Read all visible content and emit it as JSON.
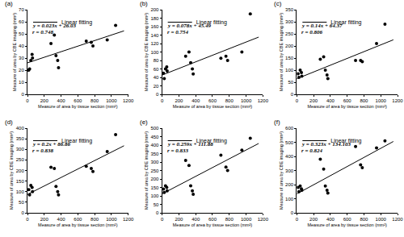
{
  "chart_data": [
    {
      "type": "scatter",
      "title": "(a)",
      "x_label": "Measure of area by tissue section (mm²)",
      "y_label": "Measure of area by CBE imaging (mm²)",
      "annotations": [
        "y = 0.023x + 26.03",
        "r = 0.748"
      ],
      "xlim": [
        0,
        1200
      ],
      "xticks": [
        0,
        200,
        400,
        600,
        800,
        1000,
        1200
      ],
      "ylim": [
        0,
        70
      ],
      "yticks": [
        0,
        10,
        20,
        30,
        40,
        50,
        60,
        70
      ],
      "grid": false,
      "legend": "top left",
      "series": [
        {
          "name": "Linear fitting",
          "type": "line",
          "color": "#000000",
          "line_style": "solid",
          "x": [
            0,
            1150
          ],
          "values": [
            26.03,
            52.48
          ]
        },
        {
          "type": "scatter",
          "color": "#000000",
          "marker": "circle",
          "x": [
            15,
            25,
            40,
            55,
            60,
            280,
            320,
            340,
            360,
            370,
            700,
            760,
            780,
            950,
            1050
          ],
          "values": [
            20,
            21,
            28,
            33,
            30,
            42,
            49,
            32,
            28,
            22,
            44,
            43,
            40,
            45,
            57
          ]
        }
      ]
    },
    {
      "type": "scatter",
      "title": "(b)",
      "x_label": "Measure of area by tissue section (mm²)",
      "y_label": "Measure of area by CBE imaging (mm²)",
      "annotations": [
        "y = 0.078x + 45.49",
        "r = 0.754"
      ],
      "xlim": [
        0,
        1200
      ],
      "xticks": [
        0,
        200,
        400,
        600,
        800,
        1000,
        1200
      ],
      "ylim": [
        0,
        200
      ],
      "yticks": [
        0,
        20,
        40,
        60,
        80,
        100,
        120,
        140,
        160,
        180,
        200
      ],
      "grid": false,
      "legend": "top left",
      "series": [
        {
          "name": "Linear fitting",
          "type": "line",
          "color": "#000000",
          "line_style": "solid",
          "x": [
            0,
            1150
          ],
          "values": [
            45.49,
            135.19
          ]
        },
        {
          "type": "scatter",
          "color": "#000000",
          "marker": "circle",
          "x": [
            15,
            25,
            40,
            55,
            60,
            280,
            320,
            340,
            360,
            370,
            700,
            760,
            780,
            950,
            1050
          ],
          "values": [
            50,
            37,
            60,
            65,
            55,
            90,
            100,
            75,
            60,
            48,
            85,
            90,
            80,
            100,
            190
          ]
        }
      ]
    },
    {
      "type": "scatter",
      "title": "(c)",
      "x_label": "Measure of area by tissue section (mm²)",
      "y_label": "Measure of area by CBE imaging (mm²)",
      "annotations": [
        "y = 0.14x + 64.37",
        "r = 0.806"
      ],
      "xlim": [
        0,
        1200
      ],
      "xticks": [
        0,
        200,
        400,
        600,
        800,
        1000,
        1200
      ],
      "ylim": [
        0,
        350
      ],
      "yticks": [
        0,
        50,
        100,
        150,
        200,
        250,
        300,
        350
      ],
      "grid": false,
      "legend": "top left",
      "series": [
        {
          "name": "Linear fitting",
          "type": "line",
          "color": "#000000",
          "line_style": "solid",
          "x": [
            0,
            1150
          ],
          "values": [
            64.37,
            225.37
          ]
        },
        {
          "type": "scatter",
          "color": "#000000",
          "marker": "circle",
          "x": [
            15,
            25,
            40,
            55,
            60,
            280,
            320,
            340,
            360,
            370,
            700,
            760,
            780,
            950,
            1050
          ],
          "values": [
            85,
            70,
            100,
            90,
            75,
            145,
            155,
            100,
            80,
            65,
            140,
            140,
            135,
            210,
            290
          ]
        }
      ]
    },
    {
      "type": "scatter",
      "title": "(d)",
      "x_label": "Measure of area by tissue section (mm²)",
      "y_label": "Measure of area by CBE imaging (mm²)",
      "annotations": [
        "y = 0.2x + 86.86",
        "r = 0.838"
      ],
      "xlim": [
        0,
        1200
      ],
      "xticks": [
        0,
        200,
        400,
        600,
        800,
        1000,
        1200
      ],
      "ylim": [
        0,
        400
      ],
      "yticks": [
        0,
        50,
        100,
        150,
        200,
        250,
        300,
        350,
        400
      ],
      "grid": false,
      "legend": "top left",
      "series": [
        {
          "name": "Linear fitting",
          "type": "line",
          "color": "#000000",
          "line_style": "solid",
          "x": [
            0,
            1150
          ],
          "values": [
            86.86,
            316.86
          ]
        },
        {
          "type": "scatter",
          "color": "#000000",
          "marker": "circle",
          "x": [
            15,
            25,
            40,
            55,
            60,
            280,
            320,
            340,
            360,
            370,
            700,
            760,
            780,
            950,
            1050
          ],
          "values": [
            110,
            85,
            130,
            120,
            100,
            215,
            210,
            125,
            100,
            85,
            220,
            210,
            195,
            290,
            370
          ]
        }
      ]
    },
    {
      "type": "scatter",
      "title": "(e)",
      "x_label": "Measure of area by tissue section (mm²)",
      "y_label": "Measure of area by CBE imaging (mm²)",
      "annotations": [
        "y = 0.259x + 111.88",
        "r = 0.833"
      ],
      "xlim": [
        0,
        1200
      ],
      "xticks": [
        0,
        200,
        400,
        600,
        800,
        1000,
        1200
      ],
      "ylim": [
        0,
        500
      ],
      "yticks": [
        0,
        50,
        100,
        150,
        200,
        250,
        300,
        350,
        400,
        450,
        500
      ],
      "grid": false,
      "legend": "top left",
      "series": [
        {
          "name": "Linear fitting",
          "type": "line",
          "color": "#000000",
          "line_style": "solid",
          "x": [
            0,
            1150
          ],
          "values": [
            111.88,
            409.73
          ]
        },
        {
          "type": "scatter",
          "color": "#000000",
          "marker": "circle",
          "x": [
            15,
            25,
            40,
            55,
            60,
            280,
            320,
            340,
            360,
            370,
            700,
            760,
            780,
            950,
            1050
          ],
          "values": [
            140,
            120,
            160,
            150,
            130,
            310,
            280,
            160,
            130,
            110,
            340,
            270,
            250,
            370,
            440
          ]
        }
      ]
    },
    {
      "type": "scatter",
      "title": "(f)",
      "x_label": "Measure of area by tissue section (mm²)",
      "y_label": "Measure of area by CBE imaging (mm²)",
      "annotations": [
        "y = 0.323x + 134.103",
        "r = 0.824"
      ],
      "xlim": [
        0,
        1200
      ],
      "xticks": [
        0,
        200,
        400,
        600,
        800,
        1000,
        1200
      ],
      "ylim": [
        0,
        600
      ],
      "yticks": [
        0,
        100,
        200,
        300,
        400,
        500,
        600
      ],
      "grid": false,
      "legend": "top left",
      "series": [
        {
          "name": "Linear fitting",
          "type": "line",
          "color": "#000000",
          "line_style": "solid",
          "x": [
            0,
            1150
          ],
          "values": [
            134.103,
            505.553
          ]
        },
        {
          "type": "scatter",
          "color": "#000000",
          "marker": "circle",
          "x": [
            15,
            25,
            40,
            55,
            60,
            280,
            320,
            340,
            360,
            370,
            700,
            760,
            780,
            950,
            1050
          ],
          "values": [
            180,
            150,
            190,
            170,
            160,
            380,
            310,
            190,
            160,
            140,
            470,
            340,
            320,
            460,
            510
          ]
        }
      ]
    }
  ]
}
